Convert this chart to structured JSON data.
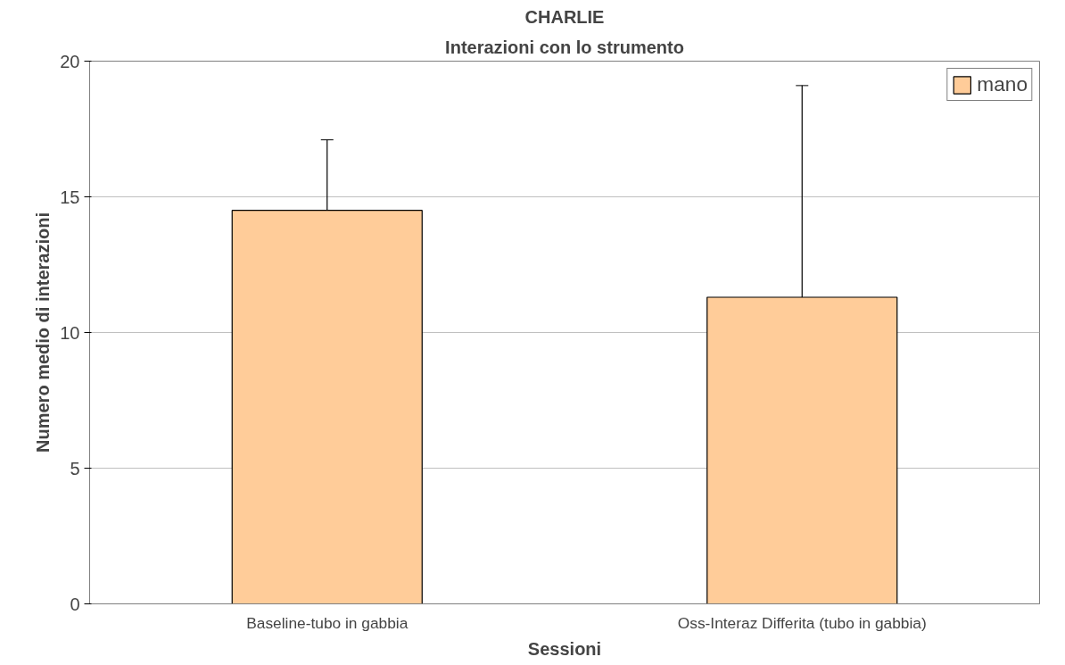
{
  "chart_data": {
    "type": "bar",
    "title": "CHARLIE",
    "subtitle": "Interazioni con lo strumento",
    "xlabel": "Sessioni",
    "ylabel": "Numero medio di interazioni",
    "categories": [
      "Baseline-tubo in gabbia",
      "Oss-Interaz Differita (tubo in gabbia)"
    ],
    "series": [
      {
        "name": "mano",
        "color": "#ffcc99",
        "values": [
          14.5,
          11.3
        ],
        "errors": [
          [
            14.5,
            17.1
          ],
          [
            11.3,
            19.1
          ]
        ]
      }
    ],
    "ylim": [
      0,
      20
    ],
    "yticks": [
      0,
      5,
      10,
      15,
      20
    ],
    "grid": "y",
    "legend": "top right"
  }
}
